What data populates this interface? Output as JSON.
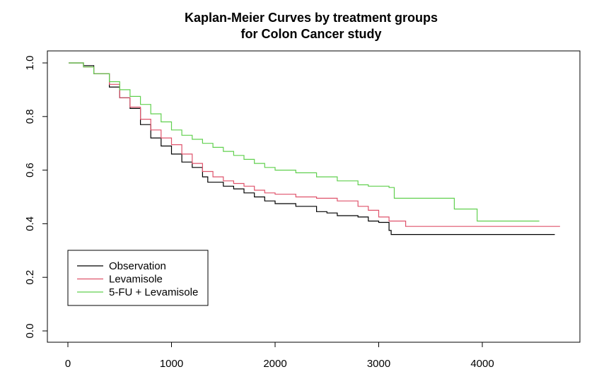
{
  "chart_data": {
    "type": "line",
    "step": true,
    "title": "Kaplan-Meier Curves by treatment groups",
    "subtitle": "for Colon Cancer study",
    "xlabel": "",
    "ylabel": "",
    "xlim": [
      0,
      4800
    ],
    "ylim": [
      0,
      1
    ],
    "x_ticks": [
      0,
      1000,
      2000,
      3000,
      4000
    ],
    "x_tick_labels": [
      "0",
      "1000",
      "2000",
      "3000",
      "4000"
    ],
    "y_ticks": [
      0,
      0.2,
      0.4,
      0.6,
      0.8,
      1.0
    ],
    "y_tick_labels": [
      "0.0",
      "0.2",
      "0.4",
      "0.6",
      "0.8",
      "1.0"
    ],
    "grid": false,
    "legend_position": "bottom-left",
    "series": [
      {
        "name": "Observation",
        "color": "#000000",
        "points": [
          [
            8,
            1.0
          ],
          [
            150,
            0.99
          ],
          [
            250,
            0.96
          ],
          [
            400,
            0.91
          ],
          [
            500,
            0.87
          ],
          [
            600,
            0.83
          ],
          [
            700,
            0.77
          ],
          [
            800,
            0.72
          ],
          [
            900,
            0.69
          ],
          [
            1000,
            0.66
          ],
          [
            1100,
            0.63
          ],
          [
            1200,
            0.61
          ],
          [
            1300,
            0.575
          ],
          [
            1350,
            0.555
          ],
          [
            1500,
            0.54
          ],
          [
            1600,
            0.53
          ],
          [
            1700,
            0.515
          ],
          [
            1800,
            0.5
          ],
          [
            1900,
            0.485
          ],
          [
            2000,
            0.475
          ],
          [
            2200,
            0.465
          ],
          [
            2400,
            0.445
          ],
          [
            2500,
            0.44
          ],
          [
            2600,
            0.43
          ],
          [
            2800,
            0.425
          ],
          [
            2900,
            0.41
          ],
          [
            3000,
            0.405
          ],
          [
            3100,
            0.375
          ],
          [
            3120,
            0.36
          ],
          [
            4700,
            0.36
          ]
        ]
      },
      {
        "name": "Levamisole",
        "color": "#DF536B",
        "points": [
          [
            8,
            1.0
          ],
          [
            150,
            0.985
          ],
          [
            250,
            0.96
          ],
          [
            400,
            0.92
          ],
          [
            500,
            0.87
          ],
          [
            600,
            0.835
          ],
          [
            700,
            0.79
          ],
          [
            800,
            0.75
          ],
          [
            900,
            0.72
          ],
          [
            1000,
            0.695
          ],
          [
            1100,
            0.66
          ],
          [
            1200,
            0.625
          ],
          [
            1300,
            0.595
          ],
          [
            1400,
            0.575
          ],
          [
            1500,
            0.56
          ],
          [
            1600,
            0.55
          ],
          [
            1700,
            0.54
          ],
          [
            1800,
            0.525
          ],
          [
            1900,
            0.515
          ],
          [
            2000,
            0.51
          ],
          [
            2200,
            0.5
          ],
          [
            2400,
            0.495
          ],
          [
            2600,
            0.485
          ],
          [
            2800,
            0.465
          ],
          [
            2900,
            0.45
          ],
          [
            3000,
            0.425
          ],
          [
            3100,
            0.41
          ],
          [
            3260,
            0.39
          ],
          [
            4750,
            0.39
          ]
        ]
      },
      {
        "name": "5-FU + Levamisole",
        "color": "#61D04F",
        "points": [
          [
            8,
            1.0
          ],
          [
            150,
            0.985
          ],
          [
            250,
            0.96
          ],
          [
            400,
            0.93
          ],
          [
            500,
            0.9
          ],
          [
            600,
            0.875
          ],
          [
            700,
            0.845
          ],
          [
            800,
            0.81
          ],
          [
            900,
            0.78
          ],
          [
            1000,
            0.75
          ],
          [
            1100,
            0.73
          ],
          [
            1200,
            0.715
          ],
          [
            1300,
            0.7
          ],
          [
            1400,
            0.685
          ],
          [
            1500,
            0.67
          ],
          [
            1600,
            0.655
          ],
          [
            1700,
            0.64
          ],
          [
            1800,
            0.625
          ],
          [
            1900,
            0.61
          ],
          [
            2000,
            0.6
          ],
          [
            2200,
            0.59
          ],
          [
            2400,
            0.575
          ],
          [
            2600,
            0.56
          ],
          [
            2800,
            0.545
          ],
          [
            2900,
            0.54
          ],
          [
            3100,
            0.535
          ],
          [
            3150,
            0.495
          ],
          [
            3500,
            0.495
          ],
          [
            3730,
            0.455
          ],
          [
            3950,
            0.41
          ],
          [
            4550,
            0.41
          ]
        ]
      }
    ]
  }
}
